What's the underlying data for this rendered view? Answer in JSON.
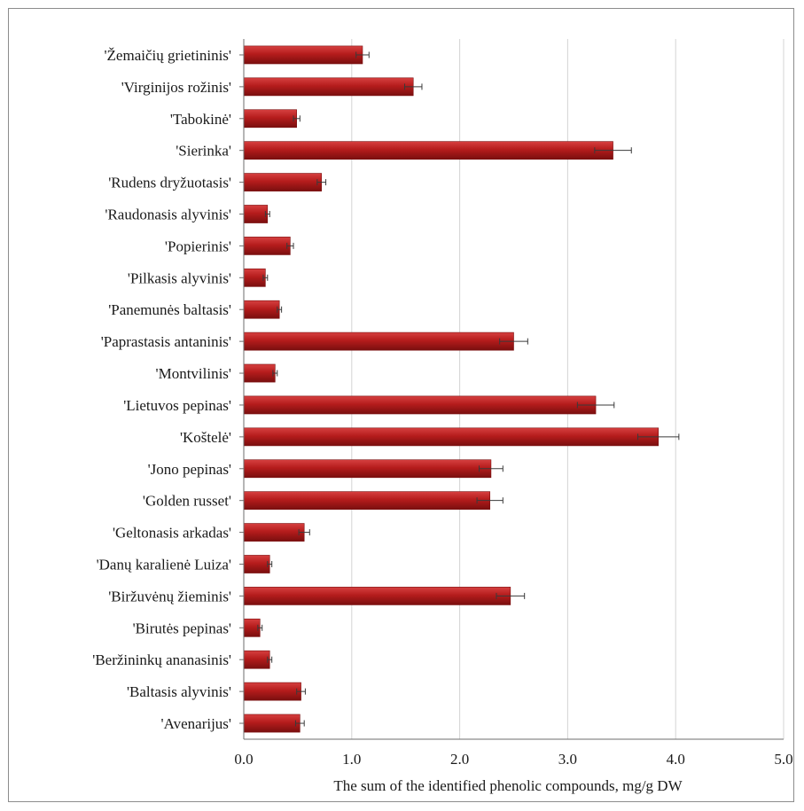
{
  "chart_data": {
    "type": "bar",
    "orientation": "horizontal",
    "categories": [
      "'Žemaičių grietininis'",
      "'Virginijos rožinis'",
      "'Tabokinė'",
      "'Sierinka'",
      "'Rudens dryžuotasis'",
      "'Raudonasis alyvinis'",
      "'Popierinis'",
      "'Pilkasis alyvinis'",
      "'Panemunės baltasis'",
      "'Paprastasis antaninis'",
      "'Montvilinis'",
      "'Lietuvos pepinas'",
      "'Koštelė'",
      "'Jono pepinas'",
      "'Golden russet'",
      "'Geltonasis arkadas'",
      "'Danų karalienė Luiza'",
      "'Biržuvėnų žieminis'",
      "'Birutės pepinas'",
      "'Beržininkų ananasinis'",
      "'Baltasis alyvinis'",
      "'Avenarijus'"
    ],
    "values": [
      1.1,
      1.57,
      0.49,
      3.42,
      0.72,
      0.22,
      0.43,
      0.2,
      0.33,
      2.5,
      0.29,
      3.26,
      3.84,
      2.29,
      2.28,
      0.56,
      0.24,
      2.47,
      0.15,
      0.24,
      0.53,
      0.52
    ],
    "errors": [
      0.06,
      0.08,
      0.03,
      0.17,
      0.04,
      0.02,
      0.03,
      0.02,
      0.02,
      0.13,
      0.02,
      0.17,
      0.19,
      0.11,
      0.12,
      0.05,
      0.02,
      0.13,
      0.02,
      0.02,
      0.04,
      0.04
    ],
    "xlabel": "The sum of the identified  phenolic  compounds,  mg/g  DW",
    "ylabel": "",
    "xlim": [
      0,
      5
    ],
    "x_ticks": [
      "0.0",
      "1.0",
      "2.0",
      "3.0",
      "4.0",
      "5.0"
    ],
    "grid": "vertical",
    "legend": "none",
    "colors": {
      "bar_main": "#b51c1c",
      "bar_dark": "#7a0f0f",
      "bar_light": "#d64040",
      "grid": "#d4d4d4",
      "axis": "#6e6e6e",
      "error": "#3a3a3a"
    }
  }
}
